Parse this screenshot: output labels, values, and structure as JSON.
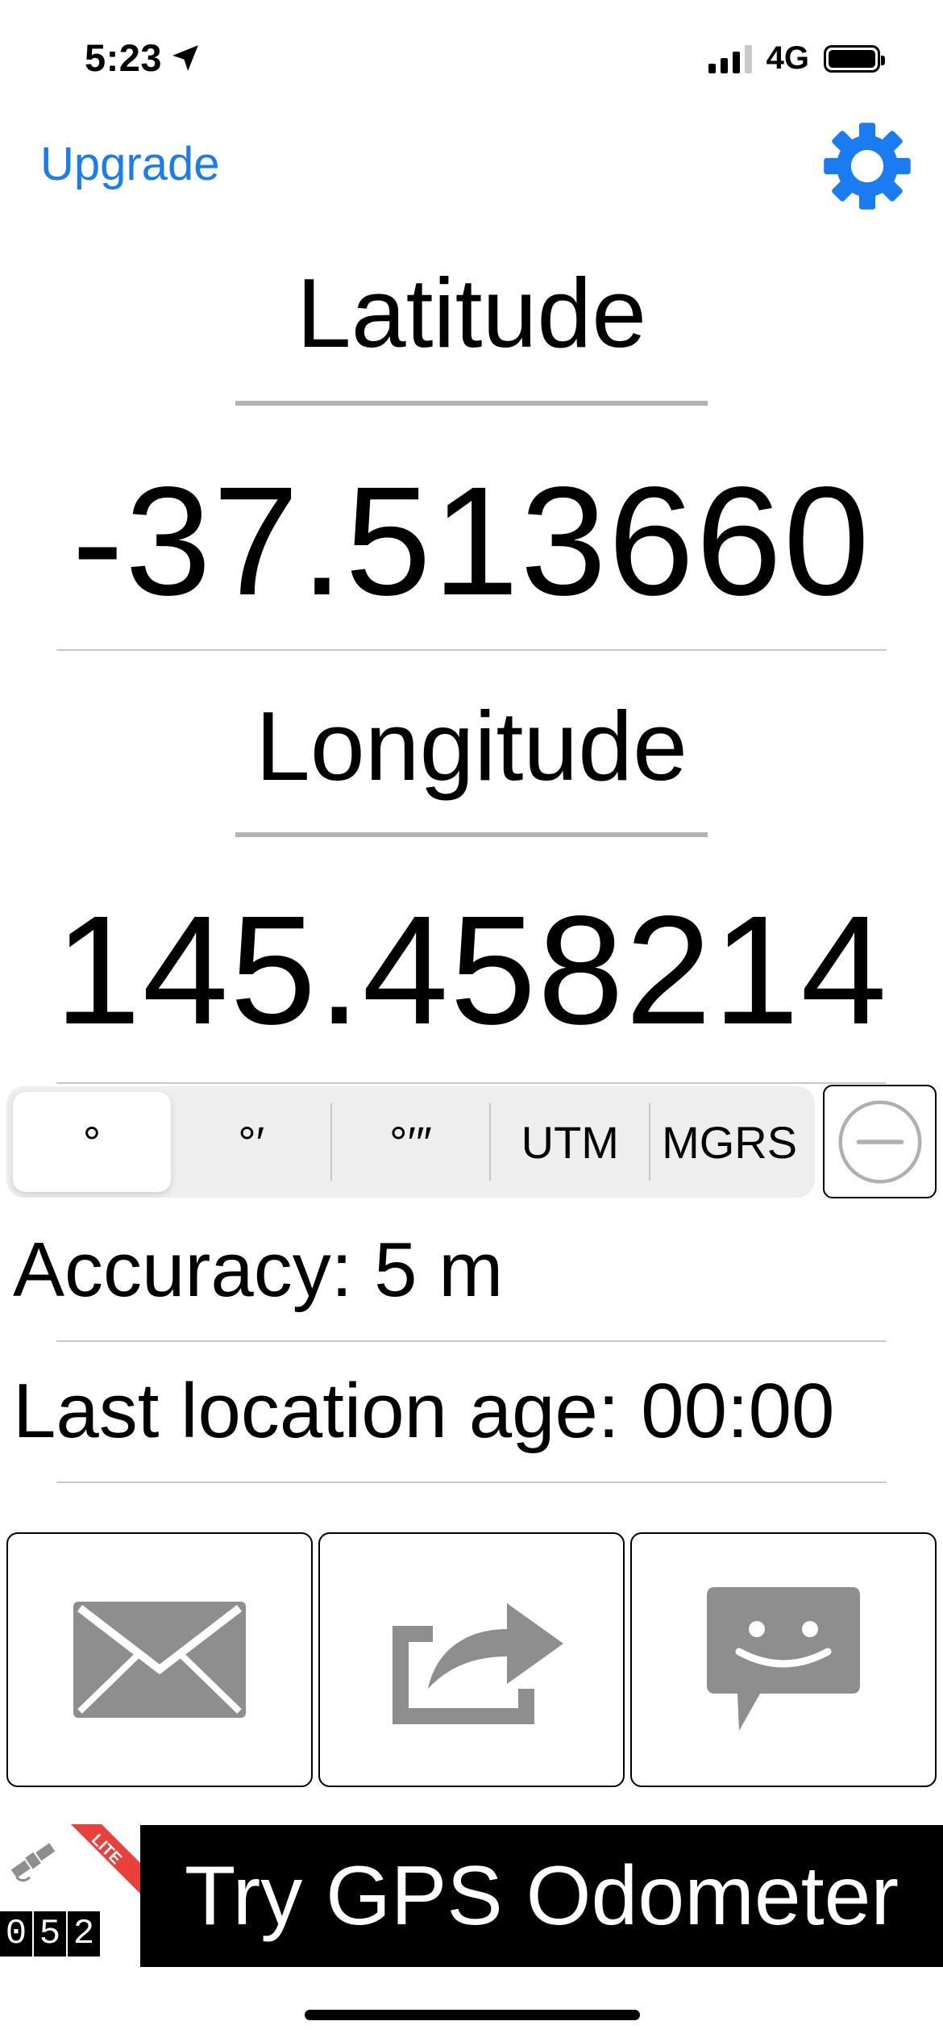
{
  "status_bar": {
    "time": "5:23",
    "network": "4G"
  },
  "nav": {
    "upgrade_label": "Upgrade"
  },
  "latitude": {
    "label": "Latitude",
    "value": "-37.513660"
  },
  "longitude": {
    "label": "Longitude",
    "value": "145.458214"
  },
  "format_segments": [
    "°",
    "°′",
    "°′″",
    "UTM",
    "MGRS"
  ],
  "selected_format": "°",
  "info": {
    "accuracy": "Accuracy: 5 m",
    "last_location_age": "Last location age: 00:00"
  },
  "actions": [
    "mail-icon",
    "share-icon",
    "message-icon"
  ],
  "promo": {
    "badge": "LITE",
    "digits": [
      "0",
      "5",
      "2"
    ],
    "banner_text": "Try GPS Odometer"
  },
  "colors": {
    "accent": "#1a7cf0",
    "text": "#000000",
    "action_icon": "#8e8e8e"
  }
}
